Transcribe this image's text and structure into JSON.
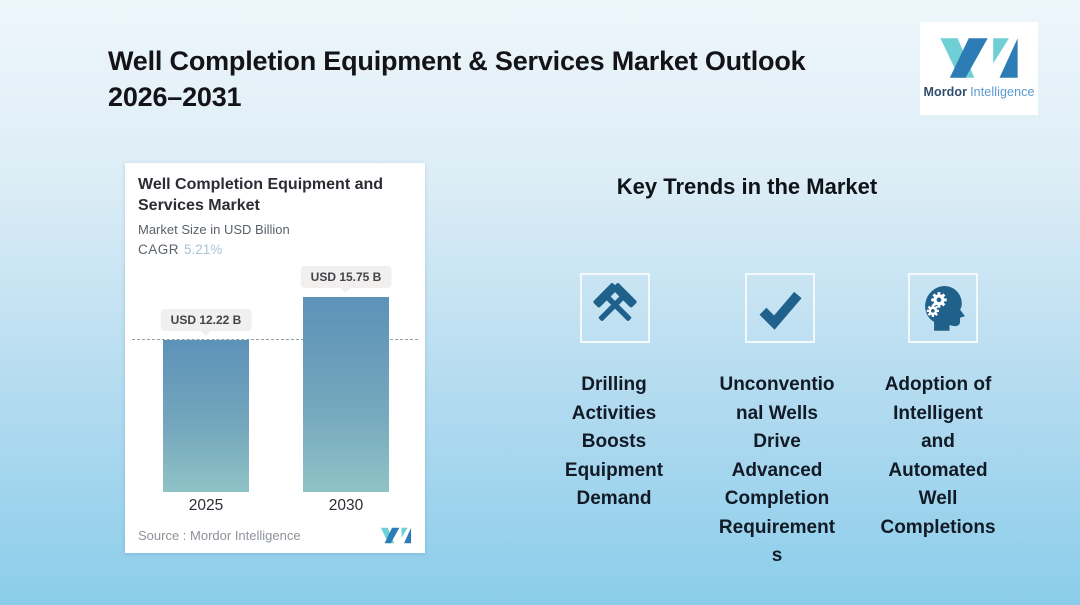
{
  "page": {
    "title": "Well Completion Equipment & Services Market Outlook\n2026–2031"
  },
  "brand_logo": {
    "name_bold": "Mordor",
    "name_light": "Intelligence"
  },
  "chart_card": {
    "title": "Well Completion Equipment and\nServices Market",
    "subtitle": "Market Size in USD Billion",
    "cagr_label": "CAGR",
    "cagr_value": "5.21%",
    "source": "Source :  Mordor Intelligence"
  },
  "chart_data": {
    "type": "bar",
    "title": "Well Completion Equipment and Services Market",
    "subtitle": "Market Size in USD Billion",
    "unit": "USD Billion",
    "cagr_percent": 5.21,
    "categories": [
      "2025",
      "2030"
    ],
    "values": [
      12.22,
      15.75
    ],
    "value_labels": [
      "USD 12.22 B",
      "USD 15.75 B"
    ],
    "baseline_dashed_at": 12.22,
    "grid": false,
    "legend": "none",
    "bar_gradient_top": "#5d92b8",
    "bar_gradient_bottom": "#8fc3c6"
  },
  "key_trends": {
    "heading": "Key Trends in the Market",
    "items": [
      {
        "icon": "crossed-hammers-icon",
        "label": "Drilling\nActivities\nBoosts\nEquipment\nDemand"
      },
      {
        "icon": "checkmark-icon",
        "label": "Unconventio\nnal Wells\nDrive\nAdvanced\nCompletion\nRequirement\ns"
      },
      {
        "icon": "head-gears-icon",
        "label": "Adoption of\nIntelligent\nand\nAutomated\nWell\nCompletions"
      }
    ]
  },
  "colors": {
    "accent_icon_blue": "#20618c",
    "logo_teal": "#6fcfd4",
    "logo_blue": "#2e7cb5",
    "background_top": "#eef6fb",
    "background_bottom": "#8bcdea",
    "cagr_value_color": "#a7c4d4",
    "dashed_line_color": "#8fa0aa"
  }
}
